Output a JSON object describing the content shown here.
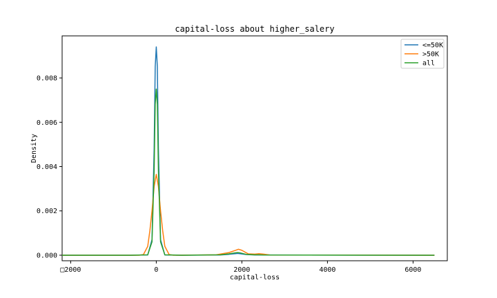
{
  "chart_data": {
    "type": "line",
    "title": "capital-loss about higher_salery",
    "xlabel": "capital-loss",
    "ylabel": "Density",
    "xlim": [
      -2200,
      6800
    ],
    "ylim": [
      -0.00025,
      0.0099
    ],
    "x_ticks": [
      -2000,
      0,
      2000,
      4000,
      6000
    ],
    "x_tick_labels": [
      "□2000",
      "0",
      "2000",
      "4000",
      "6000"
    ],
    "y_ticks": [
      0.0,
      0.002,
      0.004,
      0.006,
      0.008
    ],
    "y_tick_labels": [
      "0.000",
      "0.002",
      "0.004",
      "0.006",
      "0.008"
    ],
    "grid": false,
    "legend_position": "top-right",
    "series": [
      {
        "name": "<=50K",
        "color": "#1f77b4",
        "x": [
          -2200,
          -600,
          -200,
          -100,
          -50,
          -25,
          0,
          25,
          50,
          100,
          200,
          600,
          1500,
          1700,
          1850,
          1900,
          1950,
          2100,
          2300,
          6500
        ],
        "y": [
          0,
          0,
          1e-05,
          0.0007,
          0.0048,
          0.0085,
          0.0094,
          0.0085,
          0.0048,
          0.0007,
          1e-05,
          0,
          1e-05,
          4e-05,
          7e-05,
          8e-05,
          7e-05,
          3e-05,
          1e-05,
          0
        ]
      },
      {
        "name": ">50K",
        "color": "#ff7f0e",
        "x": [
          -2200,
          -400,
          -300,
          -200,
          -150,
          -100,
          -50,
          0,
          50,
          100,
          150,
          200,
          300,
          400,
          1400,
          1700,
          1850,
          1920,
          2000,
          2150,
          2300,
          2400,
          2500,
          2650,
          6500
        ],
        "y": [
          0,
          0,
          3e-05,
          0.0004,
          0.0011,
          0.002,
          0.0031,
          0.00365,
          0.0031,
          0.002,
          0.0011,
          0.0004,
          3e-05,
          0,
          2e-05,
          0.00012,
          0.00022,
          0.00027,
          0.00022,
          6e-05,
          5e-05,
          7e-05,
          5e-05,
          1e-05,
          0
        ]
      },
      {
        "name": "all",
        "color": "#2ca02c",
        "x": [
          -2200,
          -600,
          -200,
          -100,
          -50,
          -25,
          0,
          25,
          50,
          100,
          200,
          600,
          1500,
          1700,
          1850,
          1900,
          1950,
          2100,
          2300,
          2400,
          2500,
          6500
        ],
        "y": [
          0,
          0,
          2e-05,
          0.0006,
          0.0038,
          0.0068,
          0.0075,
          0.0068,
          0.0038,
          0.0006,
          2e-05,
          0,
          2e-05,
          6e-05,
          0.00011,
          0.00012,
          0.00011,
          4e-05,
          2e-05,
          2e-05,
          1e-05,
          0
        ]
      }
    ]
  }
}
